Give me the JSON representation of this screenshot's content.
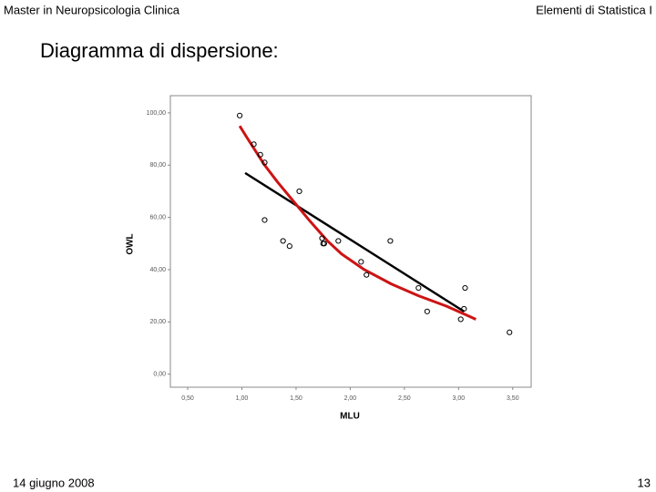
{
  "header": {
    "left": "Master in Neuropsicologia Clinica",
    "right": "Elementi di Statistica I"
  },
  "slide_title": "Diagramma di dispersione:",
  "footer": {
    "date": "14 giugno 2008",
    "page": "13"
  },
  "chart_data": {
    "type": "scatter",
    "x_label": "MLU",
    "y_label": "OWL",
    "x": [
      0.98,
      1.11,
      1.17,
      1.21,
      1.21,
      1.38,
      1.44,
      1.53,
      1.74,
      1.75,
      1.76,
      1.89,
      2.1,
      2.15,
      2.37,
      2.63,
      2.71,
      3.02,
      3.05,
      3.06,
      3.47
    ],
    "values": [
      99,
      88,
      84,
      81,
      59,
      51,
      49,
      70,
      52,
      50,
      50,
      51,
      43,
      38,
      51,
      33,
      24,
      21,
      25,
      33,
      16
    ],
    "color": "#000000",
    "lines": [
      {
        "color": "#000000",
        "x": [
          1.03,
          3.05
        ],
        "values": [
          77,
          24
        ]
      },
      {
        "color": "#cc1414",
        "x": [
          0.98,
          1.04,
          1.21,
          1.33,
          1.5,
          1.63,
          1.79,
          1.92,
          2.13,
          2.38,
          2.63,
          2.89,
          3.16
        ],
        "values": [
          95,
          91,
          80,
          73.5,
          65,
          58.5,
          51,
          46,
          40,
          34.5,
          30,
          26,
          21
        ]
      }
    ],
    "xlim": [
      0.34,
      3.67
    ],
    "ylim": [
      -5,
      106.6
    ],
    "xticks": [
      {
        "value": 0.5,
        "label": "0,50"
      },
      {
        "value": 1,
        "label": "1,00"
      },
      {
        "value": 1.5,
        "label": "1,50"
      },
      {
        "value": 2,
        "label": "2,00"
      },
      {
        "value": 2.5,
        "label": "2,50"
      },
      {
        "value": 3,
        "label": "3,00"
      },
      {
        "value": 3.5,
        "label": "3,50"
      }
    ],
    "yticks": [
      {
        "value": 0,
        "label": "0,00"
      },
      {
        "value": 20,
        "label": "20,00"
      },
      {
        "value": 40,
        "label": "40,00"
      },
      {
        "value": 60,
        "label": "60,00"
      },
      {
        "value": 80,
        "label": "80,00"
      },
      {
        "value": 100,
        "label": "100,00"
      }
    ]
  }
}
